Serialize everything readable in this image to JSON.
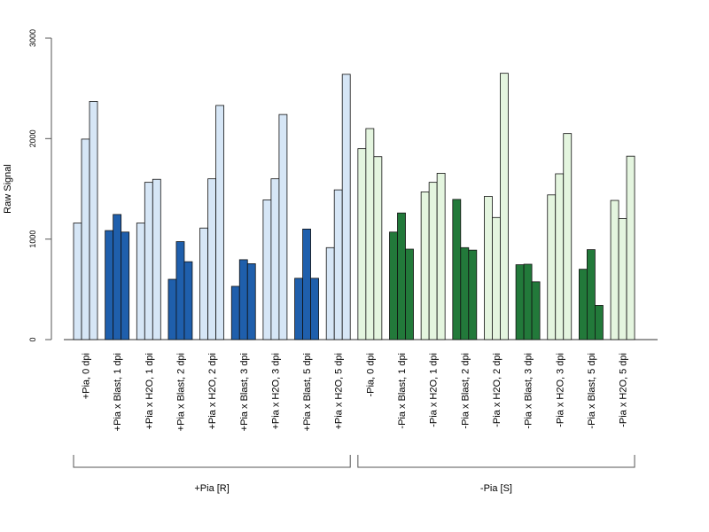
{
  "chart_data": {
    "type": "bar",
    "ylabel": "Raw Signal",
    "ylim": [
      0,
      3000
    ],
    "yticks": [
      0,
      1000,
      2000,
      3000
    ],
    "grid": false,
    "legend": "none",
    "colors": {
      "light_blue": "#d6e6f6",
      "dark_blue": "#1f5fac",
      "light_green": "#e4f5df",
      "dark_green": "#22793a"
    },
    "categories": [
      {
        "label": "+Pia, 0 dpi",
        "values": [
          1160,
          1995,
          2370
        ],
        "color": "light_blue"
      },
      {
        "label": "+Pia x Blast, 1 dpi",
        "values": [
          1085,
          1245,
          1070
        ],
        "color": "dark_blue"
      },
      {
        "label": "+Pia x H2O, 1 dpi",
        "values": [
          1160,
          1565,
          1595
        ],
        "color": "light_blue"
      },
      {
        "label": "+Pia x Blast, 2 dpi",
        "values": [
          600,
          975,
          775
        ],
        "color": "dark_blue"
      },
      {
        "label": "+Pia x H2O, 2 dpi",
        "values": [
          1110,
          1600,
          2330
        ],
        "color": "light_blue"
      },
      {
        "label": "+Pia x Blast, 3 dpi",
        "values": [
          530,
          795,
          755
        ],
        "color": "dark_blue"
      },
      {
        "label": "+Pia x H2O, 3 dpi",
        "values": [
          1390,
          1600,
          2240
        ],
        "color": "light_blue"
      },
      {
        "label": "+Pia x Blast, 5 dpi",
        "values": [
          610,
          1100,
          610
        ],
        "color": "dark_blue"
      },
      {
        "label": "+Pia x H2O, 5 dpi",
        "values": [
          915,
          1490,
          2640
        ],
        "color": "light_blue"
      },
      {
        "label": "-Pia, 0 dpi",
        "values": [
          1900,
          2100,
          1820
        ],
        "color": "light_green"
      },
      {
        "label": "-Pia x Blast, 1 dpi",
        "values": [
          1070,
          1260,
          900
        ],
        "color": "dark_green"
      },
      {
        "label": "-Pia x H2O, 1 dpi",
        "values": [
          1470,
          1565,
          1655
        ],
        "color": "light_green"
      },
      {
        "label": "-Pia x Blast, 2 dpi",
        "values": [
          1395,
          915,
          890
        ],
        "color": "dark_green"
      },
      {
        "label": "-Pia x H2O, 2 dpi",
        "values": [
          1425,
          1215,
          2650
        ],
        "color": "light_green"
      },
      {
        "label": "-Pia x Blast, 3 dpi",
        "values": [
          745,
          750,
          575
        ],
        "color": "dark_green"
      },
      {
        "label": "-Pia x H2O, 3 dpi",
        "values": [
          1440,
          1650,
          2050
        ],
        "color": "light_green"
      },
      {
        "label": "-Pia x Blast, 5 dpi",
        "values": [
          700,
          895,
          340
        ],
        "color": "dark_green"
      },
      {
        "label": "-Pia x H2O, 5 dpi",
        "values": [
          1385,
          1205,
          1825
        ],
        "color": "light_green"
      }
    ],
    "groups": [
      {
        "label": "+Pia [R]",
        "first_category": 0,
        "last_category": 8
      },
      {
        "label": "-Pia [S]",
        "first_category": 9,
        "last_category": 17
      }
    ]
  }
}
